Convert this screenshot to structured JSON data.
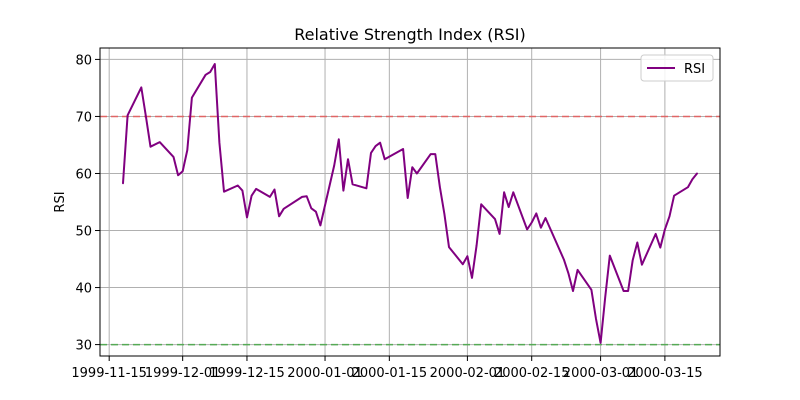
{
  "chart_data": {
    "type": "line",
    "title": "Relative Strength Index (RSI)",
    "xlabel": "",
    "ylabel": "RSI",
    "grid": true,
    "legend_position": "top-right",
    "xlim": [
      "1999-11-13",
      "2000-03-27"
    ],
    "ylim": [
      28,
      82
    ],
    "x_ticks": [
      "1999-11-15",
      "1999-12-01",
      "1999-12-15",
      "2000-01-01",
      "2000-01-15",
      "2000-02-01",
      "2000-02-15",
      "2000-03-01",
      "2000-03-15"
    ],
    "y_ticks": [
      30,
      40,
      50,
      60,
      70,
      80
    ],
    "reference_lines": [
      {
        "value": 70,
        "color": "#e06666",
        "style": "dashed"
      },
      {
        "value": 30,
        "color": "#55aa55",
        "style": "dashed"
      }
    ],
    "series": [
      {
        "name": "RSI",
        "color": "#800080",
        "x": [
          "1999-11-18",
          "1999-11-19",
          "1999-11-22",
          "1999-11-23",
          "1999-11-24",
          "1999-11-26",
          "1999-11-29",
          "1999-11-30",
          "1999-12-01",
          "1999-12-02",
          "1999-12-03",
          "1999-12-06",
          "1999-12-07",
          "1999-12-08",
          "1999-12-09",
          "1999-12-10",
          "1999-12-13",
          "1999-12-14",
          "1999-12-15",
          "1999-12-16",
          "1999-12-17",
          "1999-12-20",
          "1999-12-21",
          "1999-12-22",
          "1999-12-23",
          "1999-12-27",
          "1999-12-28",
          "1999-12-29",
          "1999-12-30",
          "1999-12-31",
          "2000-01-03",
          "2000-01-04",
          "2000-01-05",
          "2000-01-06",
          "2000-01-07",
          "2000-01-10",
          "2000-01-11",
          "2000-01-12",
          "2000-01-13",
          "2000-01-14",
          "2000-01-18",
          "2000-01-19",
          "2000-01-20",
          "2000-01-21",
          "2000-01-24",
          "2000-01-25",
          "2000-01-26",
          "2000-01-27",
          "2000-01-28",
          "2000-01-31",
          "2000-02-01",
          "2000-02-02",
          "2000-02-03",
          "2000-02-04",
          "2000-02-07",
          "2000-02-08",
          "2000-02-09",
          "2000-02-10",
          "2000-02-11",
          "2000-02-14",
          "2000-02-15",
          "2000-02-16",
          "2000-02-17",
          "2000-02-18",
          "2000-02-22",
          "2000-02-23",
          "2000-02-24",
          "2000-02-25",
          "2000-02-28",
          "2000-02-29",
          "2000-03-01",
          "2000-03-02",
          "2000-03-03",
          "2000-03-06",
          "2000-03-07",
          "2000-03-08",
          "2000-03-09",
          "2000-03-10",
          "2000-03-13",
          "2000-03-14",
          "2000-03-15",
          "2000-03-16",
          "2000-03-17",
          "2000-03-20",
          "2000-03-21",
          "2000-03-22"
        ],
        "values": [
          58.3,
          70.2,
          75.1,
          70.0,
          64.7,
          65.5,
          62.9,
          59.7,
          60.4,
          64.1,
          73.3,
          77.3,
          77.8,
          79.2,
          65.4,
          56.8,
          57.9,
          57.0,
          52.3,
          56.1,
          57.3,
          55.9,
          57.2,
          52.5,
          53.8,
          55.9,
          56.0,
          53.9,
          53.3,
          50.9,
          61.4,
          66.0,
          57.0,
          62.5,
          58.1,
          57.4,
          63.6,
          64.8,
          65.4,
          62.5,
          64.3,
          55.7,
          61.1,
          60.0,
          63.4,
          63.4,
          57.6,
          52.9,
          47.1,
          44.1,
          45.5,
          41.7,
          47.4,
          54.6,
          52.0,
          49.4,
          56.7,
          54.1,
          56.7,
          50.2,
          51.4,
          53.0,
          50.5,
          52.2,
          44.9,
          42.5,
          39.4,
          43.1,
          39.6,
          34.5,
          30.3,
          38.3,
          45.6,
          39.4,
          39.4,
          44.8,
          47.9,
          44.0,
          49.4,
          47.0,
          50.2,
          52.5,
          56.1,
          57.6,
          59.0,
          60.0
        ]
      }
    ]
  }
}
